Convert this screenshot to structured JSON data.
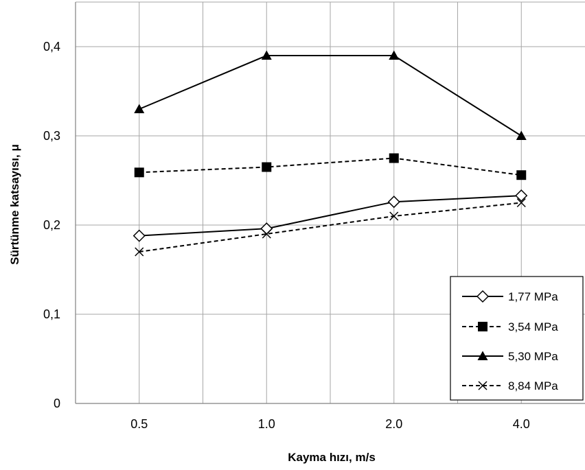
{
  "chart_data": {
    "type": "line",
    "categories": [
      "0.5",
      "1.0",
      "2.0",
      "4.0"
    ],
    "xlabel": "Kayma hızı, m/s",
    "ylabel": "Sürtünme katsayısı, μ",
    "ylim": [
      0,
      0.45
    ],
    "yticks": [
      0,
      0.1,
      0.2,
      0.3,
      0.4
    ],
    "ytick_labels": [
      "0",
      "0,1",
      "0,2",
      "0,3",
      "0,4"
    ],
    "grid": true,
    "legend_position": "bottom-right",
    "series": [
      {
        "name": "1,77 MPa",
        "values": [
          0.188,
          0.196,
          0.226,
          0.233
        ],
        "marker": "diamond-open",
        "line": "solid",
        "color": "#000000"
      },
      {
        "name": "3,54 MPa",
        "values": [
          0.259,
          0.265,
          0.275,
          0.256
        ],
        "marker": "square-filled",
        "line": "dashed",
        "color": "#000000"
      },
      {
        "name": "5,30 MPa",
        "values": [
          0.33,
          0.39,
          0.39,
          0.3
        ],
        "marker": "triangle-filled",
        "line": "solid",
        "color": "#000000"
      },
      {
        "name": "8,84 MPa",
        "values": [
          0.17,
          0.19,
          0.21,
          0.225
        ],
        "marker": "x",
        "line": "dashed",
        "color": "#000000"
      }
    ]
  }
}
